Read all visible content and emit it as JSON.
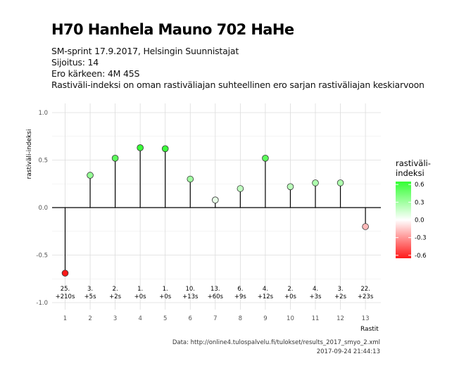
{
  "header": {
    "title": "H70 Hanhela Mauno 702 HaHe",
    "subtitle_lines": [
      "SM-sprint 17.9.2017, Helsingin Suunnistajat",
      "Sijoitus: 14",
      "Ero kärkeen: 4M 45S",
      "Rastiväli-indeksi on oman rastiväliajan suhteellinen ero sarjan rastiväliajan keskiarvoon"
    ]
  },
  "caption": {
    "source": "Data: http://online4.tulospalvelu.fi/tulokset/results_2017_smyo_2.xml",
    "timestamp": "2017-09-24 21:44:13"
  },
  "legend": {
    "title_lines": [
      "rastiväli-",
      "indeksi"
    ],
    "ticks": [
      "0.6",
      "0.3",
      "0.0",
      "-0.3",
      "-0.6"
    ],
    "colors": {
      "high": "#33ff33",
      "mid": "#ffffff",
      "low": "#ff1a1a"
    }
  },
  "chart_data": {
    "type": "lollipop",
    "xlabel": "Rastit",
    "ylabel": "rastiväli-indeksi",
    "ylim": [
      -1.0,
      1.0
    ],
    "yticks": [
      "1.0",
      "0.5",
      "0.0",
      "-0.5",
      "-1.0"
    ],
    "x": [
      1,
      2,
      3,
      4,
      5,
      6,
      7,
      8,
      9,
      10,
      11,
      12,
      13
    ],
    "values": [
      -0.69,
      0.34,
      0.52,
      0.63,
      0.62,
      0.3,
      0.08,
      0.2,
      0.52,
      0.22,
      0.26,
      0.26,
      -0.2
    ],
    "labels": [
      [
        "25.",
        "+210s"
      ],
      [
        "3.",
        "+5s"
      ],
      [
        "2.",
        "+2s"
      ],
      [
        "1.",
        "+0s"
      ],
      [
        "1.",
        "+0s"
      ],
      [
        "10.",
        "+13s"
      ],
      [
        "13.",
        "+60s"
      ],
      [
        "6.",
        "+9s"
      ],
      [
        "4.",
        "+12s"
      ],
      [
        "2.",
        "+0s"
      ],
      [
        "4.",
        "+3s"
      ],
      [
        "3.",
        "+2s"
      ],
      [
        "22.",
        "+23s"
      ]
    ],
    "grid": true,
    "legend_position": "right"
  }
}
